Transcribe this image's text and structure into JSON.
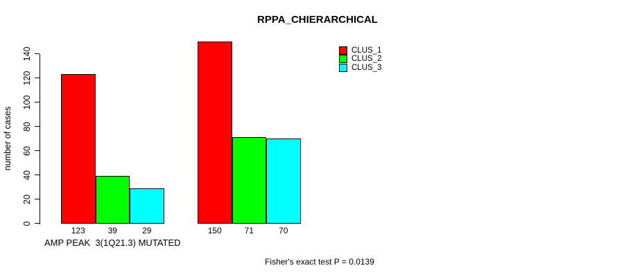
{
  "chart_data": {
    "type": "bar",
    "title": "RPPA_CHIERARCHICAL",
    "ylabel": "number of cases",
    "xlabel": "",
    "ylim": [
      0,
      140
    ],
    "yticks": [
      0,
      20,
      40,
      60,
      80,
      100,
      120,
      140
    ],
    "grid": false,
    "legend_position": "top-right",
    "categories": [
      "AMP PEAK  3(1Q21.3) MUTATED",
      ""
    ],
    "series": [
      {
        "name": "CLUS_1",
        "color": "#FF0000",
        "values": [
          123,
          150
        ]
      },
      {
        "name": "CLUS_2",
        "color": "#00FF00",
        "values": [
          39,
          71
        ]
      },
      {
        "name": "CLUS_3",
        "color": "#00FFFF",
        "values": [
          29,
          70
        ]
      }
    ],
    "bar_value_labels_shown": true,
    "footnote": "Fisher's exact test P = 0.0139"
  }
}
